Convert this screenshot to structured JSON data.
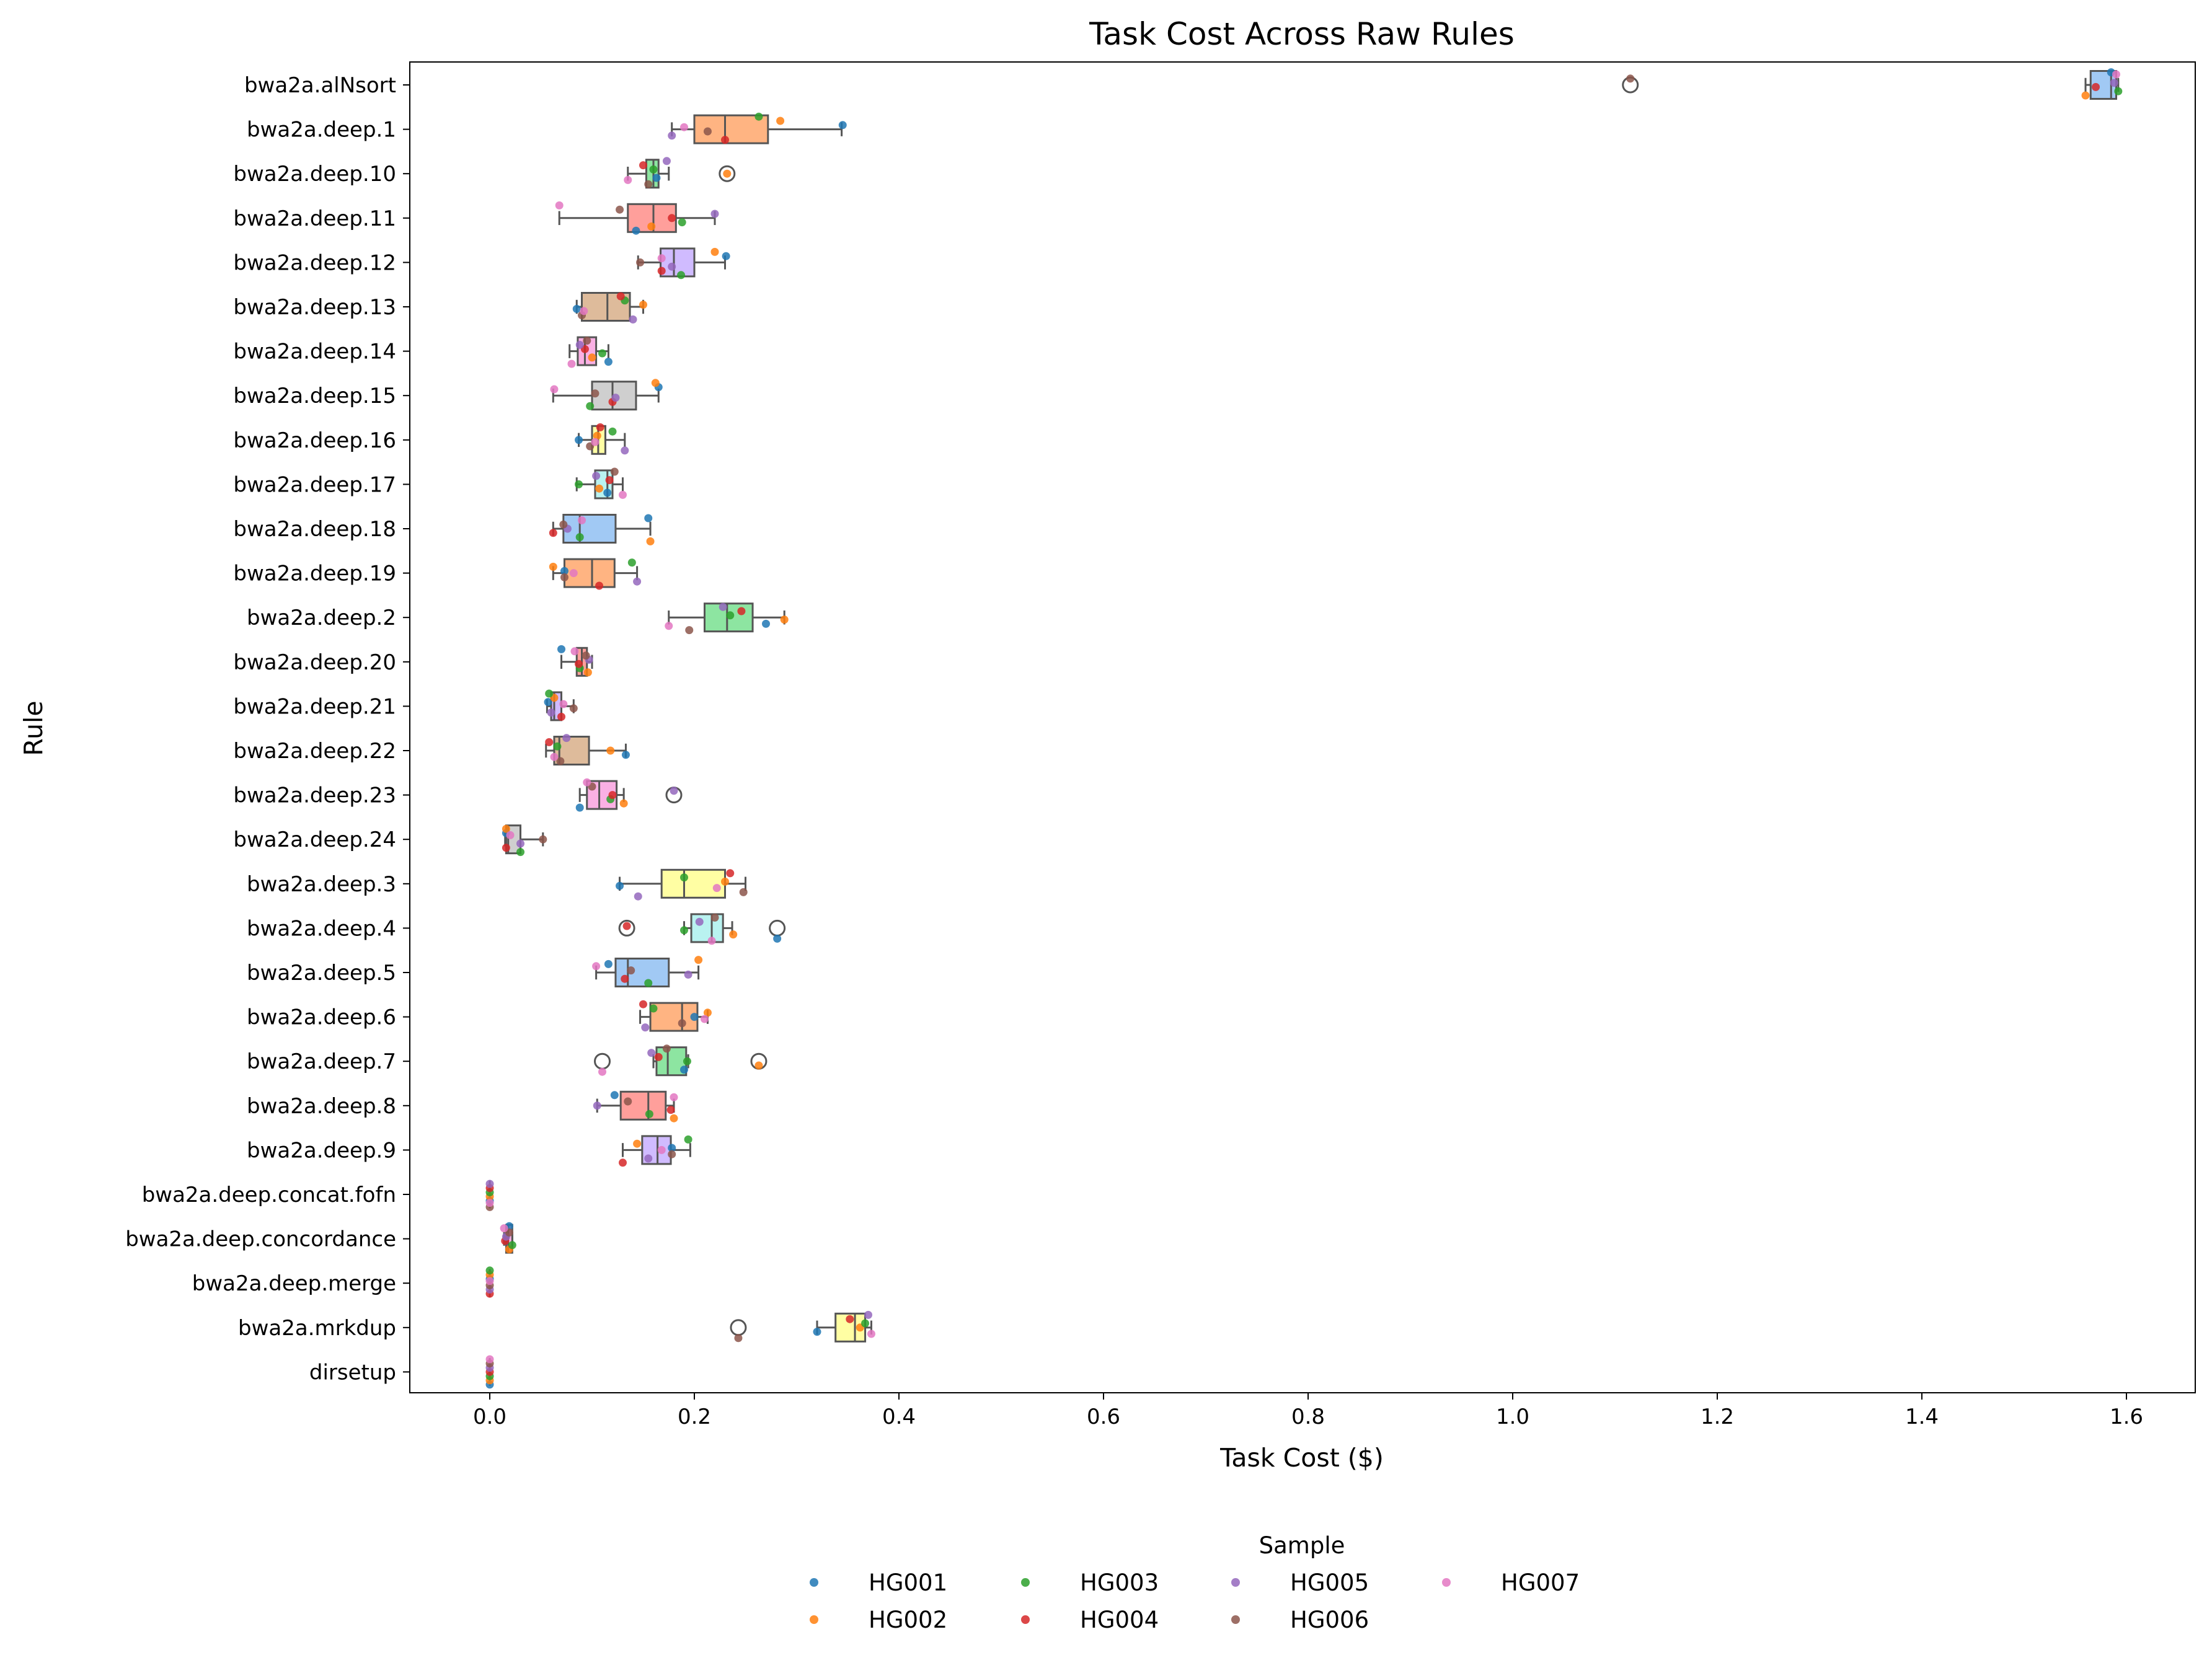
{
  "chart_data": {
    "type": "box",
    "orientation": "horizontal",
    "title": "Task Cost Across Raw Rules",
    "xlabel": "Task Cost ($)",
    "ylabel": "Rule",
    "xlim": [
      -0.08,
      1.67
    ],
    "xticks": [
      0.0,
      0.2,
      0.4,
      0.6,
      0.8,
      1.0,
      1.2,
      1.4,
      1.6
    ],
    "xtick_labels": [
      "0.0",
      "0.2",
      "0.4",
      "0.6",
      "0.8",
      "1.0",
      "1.2",
      "1.4",
      "1.6"
    ],
    "legend": {
      "title": "Sample",
      "placement": "bottom-center",
      "entries": [
        "HG001",
        "HG002",
        "HG003",
        "HG004",
        "HG005",
        "HG006",
        "HG007"
      ],
      "colors": [
        "#1f77b4",
        "#ff7f0e",
        "#2ca02c",
        "#d62728",
        "#9467bd",
        "#8c564b",
        "#e377c2"
      ]
    },
    "box_colors": [
      "#a1c9f4",
      "#ffb482",
      "#8de5a1",
      "#ff9f9b",
      "#d0bbff",
      "#debb9b",
      "#fab0e4",
      "#cfcfcf",
      "#fffea3",
      "#b9f2f0"
    ],
    "categories": [
      "bwa2a.alNsort",
      "bwa2a.deep.1",
      "bwa2a.deep.10",
      "bwa2a.deep.11",
      "bwa2a.deep.12",
      "bwa2a.deep.13",
      "bwa2a.deep.14",
      "bwa2a.deep.15",
      "bwa2a.deep.16",
      "bwa2a.deep.17",
      "bwa2a.deep.18",
      "bwa2a.deep.19",
      "bwa2a.deep.2",
      "bwa2a.deep.20",
      "bwa2a.deep.21",
      "bwa2a.deep.22",
      "bwa2a.deep.23",
      "bwa2a.deep.24",
      "bwa2a.deep.3",
      "bwa2a.deep.4",
      "bwa2a.deep.5",
      "bwa2a.deep.6",
      "bwa2a.deep.7",
      "bwa2a.deep.8",
      "bwa2a.deep.9",
      "bwa2a.deep.concat.fofn",
      "bwa2a.deep.concordance",
      "bwa2a.deep.merge",
      "bwa2a.mrkdup",
      "dirsetup"
    ],
    "boxes": [
      {
        "whislo": 1.56,
        "q1": 1.565,
        "med": 1.585,
        "q3": 1.59,
        "whishi": 1.592,
        "fliers": [
          1.115
        ]
      },
      {
        "whislo": 0.178,
        "q1": 0.2,
        "med": 0.23,
        "q3": 0.272,
        "whishi": 0.344,
        "fliers": []
      },
      {
        "whislo": 0.135,
        "q1": 0.153,
        "med": 0.16,
        "q3": 0.165,
        "whishi": 0.175,
        "fliers": [
          0.232
        ]
      },
      {
        "whislo": 0.068,
        "q1": 0.135,
        "med": 0.16,
        "q3": 0.182,
        "whishi": 0.22,
        "fliers": []
      },
      {
        "whislo": 0.145,
        "q1": 0.167,
        "med": 0.18,
        "q3": 0.2,
        "whishi": 0.23,
        "fliers": []
      },
      {
        "whislo": 0.085,
        "q1": 0.09,
        "med": 0.115,
        "q3": 0.137,
        "whishi": 0.15,
        "fliers": []
      },
      {
        "whislo": 0.078,
        "q1": 0.086,
        "med": 0.093,
        "q3": 0.104,
        "whishi": 0.116,
        "fliers": []
      },
      {
        "whislo": 0.062,
        "q1": 0.1,
        "med": 0.12,
        "q3": 0.143,
        "whishi": 0.165,
        "fliers": []
      },
      {
        "whislo": 0.087,
        "q1": 0.1,
        "med": 0.106,
        "q3": 0.113,
        "whishi": 0.132,
        "fliers": []
      },
      {
        "whislo": 0.085,
        "q1": 0.103,
        "med": 0.115,
        "q3": 0.12,
        "whishi": 0.13,
        "fliers": []
      },
      {
        "whislo": 0.062,
        "q1": 0.072,
        "med": 0.088,
        "q3": 0.123,
        "whishi": 0.157,
        "fliers": []
      },
      {
        "whislo": 0.062,
        "q1": 0.073,
        "med": 0.1,
        "q3": 0.122,
        "whishi": 0.144,
        "fliers": []
      },
      {
        "whislo": 0.175,
        "q1": 0.21,
        "med": 0.232,
        "q3": 0.257,
        "whishi": 0.288,
        "fliers": []
      },
      {
        "whislo": 0.07,
        "q1": 0.085,
        "med": 0.09,
        "q3": 0.095,
        "whishi": 0.1,
        "fliers": []
      },
      {
        "whislo": 0.056,
        "q1": 0.06,
        "med": 0.063,
        "q3": 0.07,
        "whishi": 0.082,
        "fliers": []
      },
      {
        "whislo": 0.055,
        "q1": 0.063,
        "med": 0.068,
        "q3": 0.097,
        "whishi": 0.133,
        "fliers": []
      },
      {
        "whislo": 0.088,
        "q1": 0.095,
        "med": 0.107,
        "q3": 0.124,
        "whishi": 0.131,
        "fliers": [
          0.18
        ]
      },
      {
        "whislo": 0.015,
        "q1": 0.016,
        "med": 0.018,
        "q3": 0.03,
        "whishi": 0.052,
        "fliers": []
      },
      {
        "whislo": 0.127,
        "q1": 0.168,
        "med": 0.19,
        "q3": 0.23,
        "whishi": 0.25,
        "fliers": []
      },
      {
        "whislo": 0.19,
        "q1": 0.197,
        "med": 0.217,
        "q3": 0.228,
        "whishi": 0.237,
        "fliers": [
          0.134,
          0.281
        ]
      },
      {
        "whislo": 0.104,
        "q1": 0.123,
        "med": 0.135,
        "q3": 0.175,
        "whishi": 0.204,
        "fliers": []
      },
      {
        "whislo": 0.147,
        "q1": 0.157,
        "med": 0.188,
        "q3": 0.203,
        "whishi": 0.213,
        "fliers": []
      },
      {
        "whislo": 0.16,
        "q1": 0.163,
        "med": 0.174,
        "q3": 0.192,
        "whishi": 0.194,
        "fliers": [
          0.11,
          0.263
        ]
      },
      {
        "whislo": 0.105,
        "q1": 0.128,
        "med": 0.155,
        "q3": 0.172,
        "whishi": 0.18,
        "fliers": []
      },
      {
        "whislo": 0.13,
        "q1": 0.149,
        "med": 0.164,
        "q3": 0.177,
        "whishi": 0.196,
        "fliers": []
      },
      {
        "whislo": 0.0,
        "q1": 0.0,
        "med": 0.0,
        "q3": 0.0,
        "whishi": 0.0,
        "fliers": []
      },
      {
        "whislo": 0.014,
        "q1": 0.016,
        "med": 0.018,
        "q3": 0.022,
        "whishi": 0.022,
        "fliers": []
      },
      {
        "whislo": 0.0,
        "q1": 0.0,
        "med": 0.0,
        "q3": 0.0,
        "whishi": 0.0,
        "fliers": []
      },
      {
        "whislo": 0.32,
        "q1": 0.338,
        "med": 0.357,
        "q3": 0.367,
        "whishi": 0.373,
        "fliers": [
          0.243
        ]
      },
      {
        "whislo": 0.0,
        "q1": 0.0,
        "med": 0.0,
        "q3": 0.0,
        "whishi": 0.0,
        "fliers": []
      }
    ],
    "points": [
      [
        1.585,
        1.56,
        1.592,
        1.57,
        1.588,
        1.115,
        1.59
      ],
      [
        0.345,
        0.284,
        0.263,
        0.23,
        0.178,
        0.213,
        0.19
      ],
      [
        0.163,
        0.232,
        0.16,
        0.15,
        0.173,
        0.155,
        0.135
      ],
      [
        0.143,
        0.158,
        0.188,
        0.178,
        0.22,
        0.127,
        0.068
      ],
      [
        0.231,
        0.22,
        0.187,
        0.168,
        0.178,
        0.147,
        0.168
      ],
      [
        0.085,
        0.15,
        0.132,
        0.128,
        0.14,
        0.09,
        0.092
      ],
      [
        0.116,
        0.1,
        0.11,
        0.093,
        0.088,
        0.095,
        0.08
      ],
      [
        0.165,
        0.162,
        0.098,
        0.12,
        0.123,
        0.103,
        0.063
      ],
      [
        0.087,
        0.105,
        0.12,
        0.108,
        0.132,
        0.098,
        0.103
      ],
      [
        0.115,
        0.107,
        0.087,
        0.117,
        0.104,
        0.122,
        0.13
      ],
      [
        0.155,
        0.157,
        0.088,
        0.062,
        0.076,
        0.072,
        0.09
      ],
      [
        0.073,
        0.062,
        0.139,
        0.107,
        0.144,
        0.073,
        0.082
      ],
      [
        0.27,
        0.288,
        0.235,
        0.246,
        0.228,
        0.195,
        0.175
      ],
      [
        0.07,
        0.096,
        0.088,
        0.087,
        0.097,
        0.094,
        0.083
      ],
      [
        0.057,
        0.063,
        0.058,
        0.07,
        0.06,
        0.082,
        0.072
      ],
      [
        0.133,
        0.118,
        0.066,
        0.058,
        0.075,
        0.069,
        0.063
      ],
      [
        0.088,
        0.131,
        0.118,
        0.12,
        0.18,
        0.1,
        0.095
      ],
      [
        0.016,
        0.016,
        0.03,
        0.016,
        0.03,
        0.052,
        0.02
      ],
      [
        0.127,
        0.23,
        0.19,
        0.235,
        0.145,
        0.248,
        0.222
      ],
      [
        0.281,
        0.238,
        0.19,
        0.134,
        0.205,
        0.22,
        0.217
      ],
      [
        0.116,
        0.204,
        0.155,
        0.132,
        0.194,
        0.138,
        0.104
      ],
      [
        0.2,
        0.213,
        0.16,
        0.15,
        0.152,
        0.188,
        0.21
      ],
      [
        0.19,
        0.263,
        0.193,
        0.165,
        0.158,
        0.173,
        0.11
      ],
      [
        0.122,
        0.18,
        0.156,
        0.177,
        0.105,
        0.135,
        0.18
      ],
      [
        0.178,
        0.144,
        0.194,
        0.13,
        0.155,
        0.178,
        0.168
      ],
      [
        0.0,
        0.0,
        0.0,
        0.0,
        0.0,
        0.0,
        0.0
      ],
      [
        0.019,
        0.019,
        0.022,
        0.015,
        0.016,
        0.019,
        0.014
      ],
      [
        0.0,
        0.0,
        0.0,
        0.0,
        0.0,
        0.0,
        0.0
      ],
      [
        0.32,
        0.362,
        0.367,
        0.352,
        0.37,
        0.243,
        0.373
      ],
      [
        0.0,
        0.0,
        0.0,
        0.0,
        0.0,
        0.0,
        0.0
      ]
    ]
  }
}
